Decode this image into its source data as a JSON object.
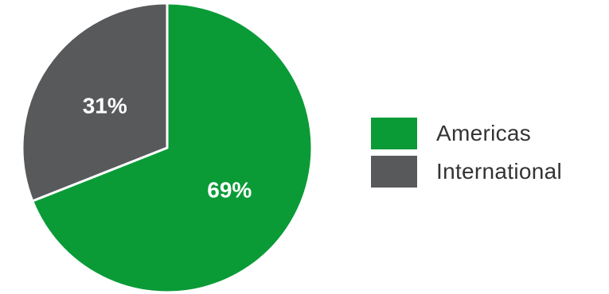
{
  "chart_data": {
    "type": "pie",
    "categories": [
      "Americas",
      "International"
    ],
    "values": [
      69,
      31
    ],
    "value_labels": [
      "69%",
      "31%"
    ],
    "colors": [
      "#0a9b37",
      "#58595b"
    ],
    "legend_position": "right"
  }
}
